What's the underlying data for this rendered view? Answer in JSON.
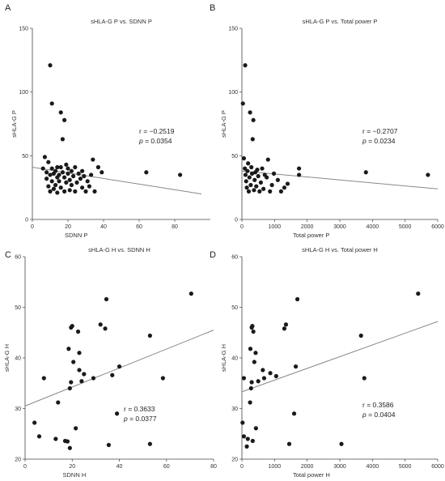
{
  "chart_data": [
    {
      "type": "scatter",
      "panel": "A",
      "title": "sHLA-G P vs. SDNN P",
      "xlabel": "SDNN P",
      "ylabel": "sHLA-G P",
      "xlim": [
        0,
        100
      ],
      "ylim": [
        0,
        150
      ],
      "xticks": [
        0,
        20,
        40,
        60,
        80
      ],
      "yticks": [
        0,
        50,
        100,
        150
      ],
      "grid": false,
      "stat_r": "r = −0.2519",
      "stat_p_label": "p",
      "stat_p_value": " = 0.0354",
      "fit_line": {
        "x": [
          0,
          95
        ],
        "y": [
          41,
          20
        ]
      },
      "points": [
        {
          "x": 6,
          "y": 40
        },
        {
          "x": 7,
          "y": 49
        },
        {
          "x": 8,
          "y": 37
        },
        {
          "x": 8,
          "y": 32
        },
        {
          "x": 9,
          "y": 45
        },
        {
          "x": 9,
          "y": 26
        },
        {
          "x": 10,
          "y": 121
        },
        {
          "x": 10,
          "y": 35
        },
        {
          "x": 10,
          "y": 22
        },
        {
          "x": 11,
          "y": 91
        },
        {
          "x": 11,
          "y": 40
        },
        {
          "x": 11,
          "y": 30
        },
        {
          "x": 12,
          "y": 36
        },
        {
          "x": 12,
          "y": 24
        },
        {
          "x": 13,
          "y": 38
        },
        {
          "x": 13,
          "y": 27
        },
        {
          "x": 14,
          "y": 41
        },
        {
          "x": 14,
          "y": 33
        },
        {
          "x": 14,
          "y": 21
        },
        {
          "x": 15,
          "y": 35
        },
        {
          "x": 15,
          "y": 30
        },
        {
          "x": 16,
          "y": 84
        },
        {
          "x": 16,
          "y": 41
        },
        {
          "x": 16,
          "y": 25
        },
        {
          "x": 17,
          "y": 37
        },
        {
          "x": 17,
          "y": 63
        },
        {
          "x": 18,
          "y": 78
        },
        {
          "x": 18,
          "y": 33
        },
        {
          "x": 18,
          "y": 22
        },
        {
          "x": 19,
          "y": 43
        },
        {
          "x": 19,
          "y": 29
        },
        {
          "x": 20,
          "y": 36
        },
        {
          "x": 20,
          "y": 40
        },
        {
          "x": 21,
          "y": 31
        },
        {
          "x": 21,
          "y": 23
        },
        {
          "x": 22,
          "y": 38
        },
        {
          "x": 22,
          "y": 27
        },
        {
          "x": 23,
          "y": 34
        },
        {
          "x": 24,
          "y": 41
        },
        {
          "x": 24,
          "y": 22
        },
        {
          "x": 25,
          "y": 29
        },
        {
          "x": 26,
          "y": 36
        },
        {
          "x": 27,
          "y": 32
        },
        {
          "x": 28,
          "y": 38
        },
        {
          "x": 28,
          "y": 25
        },
        {
          "x": 29,
          "y": 34
        },
        {
          "x": 30,
          "y": 22
        },
        {
          "x": 31,
          "y": 30
        },
        {
          "x": 32,
          "y": 26
        },
        {
          "x": 33,
          "y": 35
        },
        {
          "x": 34,
          "y": 47
        },
        {
          "x": 35,
          "y": 22
        },
        {
          "x": 37,
          "y": 41
        },
        {
          "x": 39,
          "y": 37
        },
        {
          "x": 64,
          "y": 37
        },
        {
          "x": 83,
          "y": 35
        }
      ]
    },
    {
      "type": "scatter",
      "panel": "B",
      "title": "sHLA-G P vs. Total power P",
      "xlabel": "Total power P",
      "ylabel": "sHLA-G P",
      "xlim": [
        0,
        6000
      ],
      "ylim": [
        0,
        150
      ],
      "xticks": [
        0,
        1000,
        2000,
        3000,
        4000,
        5000,
        6000
      ],
      "yticks": [
        0,
        50,
        100,
        150
      ],
      "grid": false,
      "stat_r": "r = −0.2707",
      "stat_p_label": "p",
      "stat_p_value": " = 0.0234",
      "fit_line": {
        "x": [
          0,
          6000
        ],
        "y": [
          38,
          24
        ]
      },
      "points": [
        {
          "x": 30,
          "y": 91
        },
        {
          "x": 60,
          "y": 48
        },
        {
          "x": 90,
          "y": 40
        },
        {
          "x": 100,
          "y": 121
        },
        {
          "x": 110,
          "y": 35
        },
        {
          "x": 130,
          "y": 30
        },
        {
          "x": 150,
          "y": 25
        },
        {
          "x": 170,
          "y": 38
        },
        {
          "x": 190,
          "y": 44
        },
        {
          "x": 210,
          "y": 22
        },
        {
          "x": 230,
          "y": 33
        },
        {
          "x": 250,
          "y": 84
        },
        {
          "x": 270,
          "y": 27
        },
        {
          "x": 290,
          "y": 41
        },
        {
          "x": 310,
          "y": 36
        },
        {
          "x": 330,
          "y": 63
        },
        {
          "x": 350,
          "y": 78
        },
        {
          "x": 370,
          "y": 23
        },
        {
          "x": 390,
          "y": 31
        },
        {
          "x": 410,
          "y": 37
        },
        {
          "x": 440,
          "y": 26
        },
        {
          "x": 470,
          "y": 39
        },
        {
          "x": 500,
          "y": 34
        },
        {
          "x": 540,
          "y": 22
        },
        {
          "x": 580,
          "y": 29
        },
        {
          "x": 620,
          "y": 40
        },
        {
          "x": 660,
          "y": 24
        },
        {
          "x": 700,
          "y": 35
        },
        {
          "x": 760,
          "y": 33
        },
        {
          "x": 800,
          "y": 47
        },
        {
          "x": 860,
          "y": 22
        },
        {
          "x": 920,
          "y": 27
        },
        {
          "x": 980,
          "y": 36
        },
        {
          "x": 1100,
          "y": 31
        },
        {
          "x": 1200,
          "y": 22
        },
        {
          "x": 1300,
          "y": 25
        },
        {
          "x": 1400,
          "y": 28
        },
        {
          "x": 1750,
          "y": 40
        },
        {
          "x": 1750,
          "y": 35
        },
        {
          "x": 3800,
          "y": 37
        },
        {
          "x": 5700,
          "y": 35
        }
      ]
    },
    {
      "type": "scatter",
      "panel": "C",
      "title": "sHLA-G H vs. SDNN H",
      "xlabel": "SDNN H",
      "ylabel": "sHLA-G H",
      "xlim": [
        0,
        80
      ],
      "ylim": [
        20,
        60
      ],
      "xticks": [
        0,
        20,
        40,
        60,
        80
      ],
      "yticks": [
        20,
        30,
        40,
        50,
        60
      ],
      "grid": false,
      "stat_r": "r = 0.3633",
      "stat_p_label": "p",
      "stat_p_value": " = 0.0377",
      "fit_line": {
        "x": [
          0,
          80
        ],
        "y": [
          30.5,
          45.5
        ]
      },
      "points": [
        {
          "x": 4,
          "y": 27.2
        },
        {
          "x": 6,
          "y": 24.5
        },
        {
          "x": 8,
          "y": 36
        },
        {
          "x": 13,
          "y": 24
        },
        {
          "x": 14,
          "y": 31.2
        },
        {
          "x": 17,
          "y": 23.6
        },
        {
          "x": 18,
          "y": 23.5
        },
        {
          "x": 18.5,
          "y": 41.8
        },
        {
          "x": 19,
          "y": 22.2
        },
        {
          "x": 19,
          "y": 34
        },
        {
          "x": 19.5,
          "y": 35.2
        },
        {
          "x": 19.5,
          "y": 46
        },
        {
          "x": 20,
          "y": 46.3
        },
        {
          "x": 20.5,
          "y": 39.2
        },
        {
          "x": 21.5,
          "y": 26.1
        },
        {
          "x": 22.5,
          "y": 45.2
        },
        {
          "x": 23,
          "y": 41
        },
        {
          "x": 23,
          "y": 37.6
        },
        {
          "x": 24,
          "y": 35.4
        },
        {
          "x": 25,
          "y": 36.8
        },
        {
          "x": 29,
          "y": 36
        },
        {
          "x": 32,
          "y": 46.6
        },
        {
          "x": 34,
          "y": 45.8
        },
        {
          "x": 34.5,
          "y": 51.6
        },
        {
          "x": 35.5,
          "y": 22.8
        },
        {
          "x": 37,
          "y": 36.6
        },
        {
          "x": 39,
          "y": 29
        },
        {
          "x": 40,
          "y": 38.3
        },
        {
          "x": 53,
          "y": 44.4
        },
        {
          "x": 53,
          "y": 23
        },
        {
          "x": 58.5,
          "y": 36
        },
        {
          "x": 70.5,
          "y": 52.7
        }
      ]
    },
    {
      "type": "scatter",
      "panel": "D",
      "title": "sHLA-G H vs. Total power H",
      "xlabel": "Total power H",
      "ylabel": "sHLA-G H",
      "xlim": [
        0,
        6000
      ],
      "ylim": [
        20,
        60
      ],
      "xticks": [
        0,
        1000,
        2000,
        3000,
        4000,
        5000,
        6000
      ],
      "yticks": [
        20,
        30,
        40,
        50,
        60
      ],
      "grid": false,
      "stat_r": "r = 0.3586",
      "stat_p_label": "p",
      "stat_p_value": " = 0.0404",
      "fit_line": {
        "x": [
          0,
          6000
        ],
        "y": [
          33.3,
          47.2
        ]
      },
      "points": [
        {
          "x": 20,
          "y": 27.2
        },
        {
          "x": 60,
          "y": 36
        },
        {
          "x": 60,
          "y": 24.5
        },
        {
          "x": 150,
          "y": 22.5
        },
        {
          "x": 180,
          "y": 24
        },
        {
          "x": 250,
          "y": 31.2
        },
        {
          "x": 260,
          "y": 41.8
        },
        {
          "x": 280,
          "y": 34
        },
        {
          "x": 300,
          "y": 35.2
        },
        {
          "x": 300,
          "y": 46
        },
        {
          "x": 320,
          "y": 46.3
        },
        {
          "x": 330,
          "y": 23.6
        },
        {
          "x": 350,
          "y": 45.2
        },
        {
          "x": 380,
          "y": 39.2
        },
        {
          "x": 420,
          "y": 41
        },
        {
          "x": 430,
          "y": 26.1
        },
        {
          "x": 500,
          "y": 35.4
        },
        {
          "x": 640,
          "y": 37.6
        },
        {
          "x": 680,
          "y": 36
        },
        {
          "x": 870,
          "y": 37
        },
        {
          "x": 1050,
          "y": 36.4
        },
        {
          "x": 1300,
          "y": 45.8
        },
        {
          "x": 1350,
          "y": 46.6
        },
        {
          "x": 1450,
          "y": 23
        },
        {
          "x": 1600,
          "y": 29
        },
        {
          "x": 1650,
          "y": 38.3
        },
        {
          "x": 1700,
          "y": 51.6
        },
        {
          "x": 3050,
          "y": 23
        },
        {
          "x": 3650,
          "y": 44.4
        },
        {
          "x": 3750,
          "y": 36
        },
        {
          "x": 5400,
          "y": 52.7
        }
      ]
    }
  ]
}
